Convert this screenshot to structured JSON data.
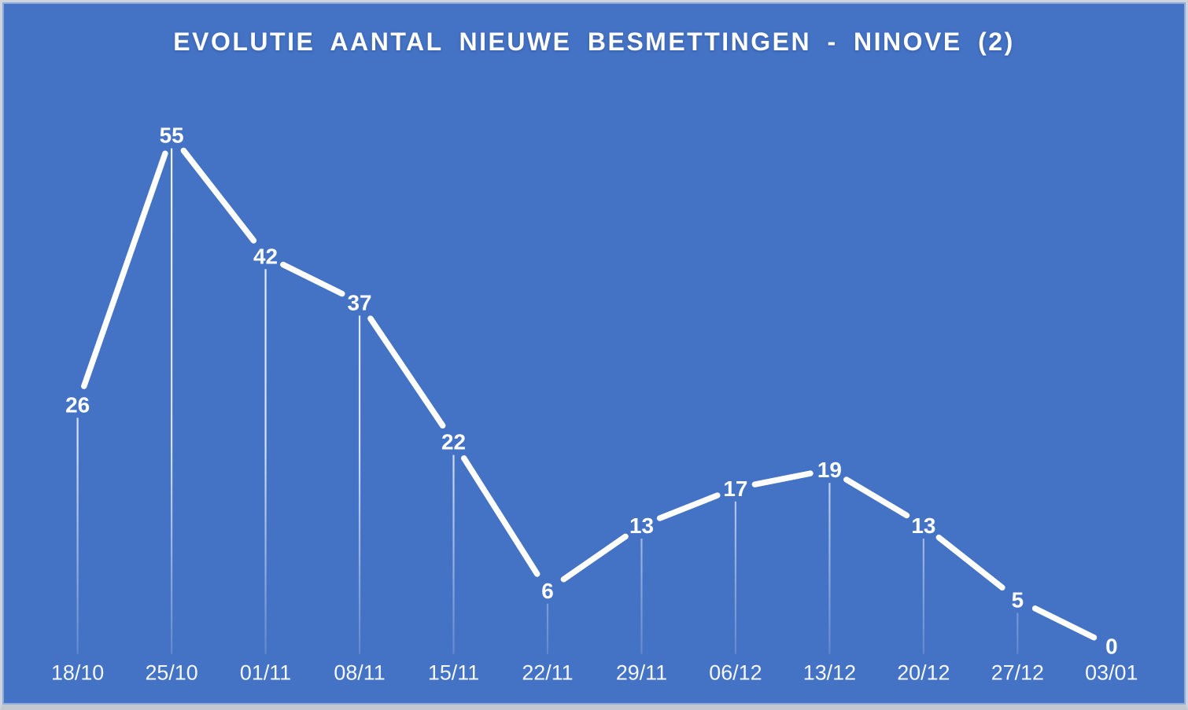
{
  "window": {
    "background_color": "#4472C4",
    "frame_border_color": "#d0d4dc",
    "frame_bottom_shadow_color": "#c3c8d1"
  },
  "chart": {
    "title": "EVOLUTIE AANTAL NIEUWE BESMETTINGEN - NINOVE (2)",
    "title_color": "#FFFFFF"
  },
  "chart_data": {
    "type": "line",
    "title": "EVOLUTIE AANTAL NIEUWE BESMETTINGEN - NINOVE (2)",
    "categories": [
      "18/10",
      "25/10",
      "01/11",
      "08/11",
      "15/11",
      "22/11",
      "29/11",
      "06/12",
      "13/12",
      "20/12",
      "27/12",
      "03/01"
    ],
    "values": [
      26,
      55,
      42,
      37,
      22,
      6,
      13,
      17,
      19,
      13,
      5,
      0
    ],
    "xlabel": "",
    "ylabel": "",
    "ylim": [
      0,
      55
    ],
    "grid": false,
    "legend": false,
    "y_axis_visible": false,
    "x_axis_labels_position": "bottom",
    "data_labels_position": "center-on-point",
    "line_color": "#FFFFFF",
    "data_label_color": "#FFFFFF",
    "axis_label_color": "#FFFFFF",
    "drop_lines": true,
    "drop_line_color": "#FFFFFF"
  }
}
